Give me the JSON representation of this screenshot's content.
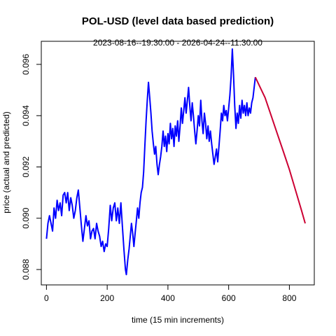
{
  "chart_data": {
    "type": "line",
    "title": "POL-USD (level data based prediction)",
    "subtitle": "2023-08-16--19:30:00  -  2026-04-24--11:30:00",
    "xlabel": "time (15 min increments)",
    "ylabel": "price (actual and predicted)",
    "xlim": [
      -17,
      882
    ],
    "ylim": [
      0.0874,
      0.0969
    ],
    "x_ticks": [
      0,
      200,
      400,
      600,
      800
    ],
    "x_tick_labels": [
      "0",
      "200",
      "400",
      "600",
      "800"
    ],
    "y_ticks": [
      0.088,
      0.09,
      0.092,
      0.094,
      0.096
    ],
    "y_tick_labels": [
      "0.088",
      "0.090",
      "0.092",
      "0.094",
      "0.096"
    ],
    "grid": false,
    "series": [
      {
        "role": "actual",
        "color": "#0000ff",
        "points": [
          [
            0,
            0.0892
          ],
          [
            5,
            0.0898
          ],
          [
            10,
            0.0901
          ],
          [
            15,
            0.0898
          ],
          [
            20,
            0.0895
          ],
          [
            25,
            0.0904
          ],
          [
            30,
            0.09
          ],
          [
            35,
            0.0907
          ],
          [
            40,
            0.0903
          ],
          [
            45,
            0.0906
          ],
          [
            50,
            0.0901
          ],
          [
            55,
            0.0909
          ],
          [
            60,
            0.091
          ],
          [
            65,
            0.0906
          ],
          [
            70,
            0.091
          ],
          [
            75,
            0.0903
          ],
          [
            80,
            0.0908
          ],
          [
            85,
            0.0905
          ],
          [
            90,
            0.09
          ],
          [
            95,
            0.0903
          ],
          [
            100,
            0.0908
          ],
          [
            105,
            0.0911
          ],
          [
            110,
            0.0904
          ],
          [
            115,
            0.0897
          ],
          [
            120,
            0.0891
          ],
          [
            125,
            0.0896
          ],
          [
            130,
            0.0901
          ],
          [
            135,
            0.0897
          ],
          [
            140,
            0.0899
          ],
          [
            145,
            0.0892
          ],
          [
            150,
            0.0895
          ],
          [
            155,
            0.0896
          ],
          [
            160,
            0.0892
          ],
          [
            165,
            0.0898
          ],
          [
            170,
            0.0895
          ],
          [
            175,
            0.0893
          ],
          [
            180,
            0.0889
          ],
          [
            185,
            0.0891
          ],
          [
            190,
            0.0887
          ],
          [
            195,
            0.089
          ],
          [
            200,
            0.0889
          ],
          [
            205,
            0.0896
          ],
          [
            210,
            0.0905
          ],
          [
            215,
            0.0899
          ],
          [
            220,
            0.0904
          ],
          [
            225,
            0.0906
          ],
          [
            230,
            0.0899
          ],
          [
            235,
            0.0904
          ],
          [
            240,
            0.0898
          ],
          [
            245,
            0.0906
          ],
          [
            250,
            0.0897
          ],
          [
            255,
            0.0888
          ],
          [
            260,
            0.088
          ],
          [
            263,
            0.0878
          ],
          [
            268,
            0.0884
          ],
          [
            272,
            0.0888
          ],
          [
            276,
            0.0893
          ],
          [
            280,
            0.0898
          ],
          [
            284,
            0.0894
          ],
          [
            288,
            0.0889
          ],
          [
            292,
            0.0894
          ],
          [
            296,
            0.0899
          ],
          [
            300,
            0.0904
          ],
          [
            304,
            0.09
          ],
          [
            308,
            0.0906
          ],
          [
            312,
            0.091
          ],
          [
            316,
            0.0912
          ],
          [
            320,
            0.0918
          ],
          [
            324,
            0.0928
          ],
          [
            328,
            0.0938
          ],
          [
            332,
            0.0946
          ],
          [
            336,
            0.0953
          ],
          [
            340,
            0.0947
          ],
          [
            344,
            0.0941
          ],
          [
            348,
            0.0934
          ],
          [
            352,
            0.0929
          ],
          [
            356,
            0.0925
          ],
          [
            360,
            0.0928
          ],
          [
            364,
            0.0921
          ],
          [
            368,
            0.0917
          ],
          [
            372,
            0.0921
          ],
          [
            376,
            0.0924
          ],
          [
            380,
            0.0928
          ],
          [
            384,
            0.0934
          ],
          [
            388,
            0.0928
          ],
          [
            392,
            0.0932
          ],
          [
            396,
            0.0926
          ],
          [
            400,
            0.0933
          ],
          [
            404,
            0.0929
          ],
          [
            408,
            0.0937
          ],
          [
            412,
            0.0931
          ],
          [
            416,
            0.0935
          ],
          [
            420,
            0.0928
          ],
          [
            424,
            0.0936
          ],
          [
            428,
            0.0932
          ],
          [
            432,
            0.0938
          ],
          [
            436,
            0.093
          ],
          [
            440,
            0.0936
          ],
          [
            444,
            0.0943
          ],
          [
            448,
            0.0937
          ],
          [
            452,
            0.0942
          ],
          [
            456,
            0.0947
          ],
          [
            460,
            0.0941
          ],
          [
            464,
            0.0946
          ],
          [
            468,
            0.0951
          ],
          [
            472,
            0.0944
          ],
          [
            476,
            0.0938
          ],
          [
            480,
            0.0945
          ],
          [
            484,
            0.094
          ],
          [
            488,
            0.0934
          ],
          [
            492,
            0.0929
          ],
          [
            496,
            0.0934
          ],
          [
            500,
            0.094
          ],
          [
            504,
            0.0936
          ],
          [
            508,
            0.0946
          ],
          [
            512,
            0.0938
          ],
          [
            516,
            0.0933
          ],
          [
            520,
            0.0941
          ],
          [
            524,
            0.0937
          ],
          [
            528,
            0.0931
          ],
          [
            532,
            0.0936
          ],
          [
            536,
            0.093
          ],
          [
            540,
            0.0934
          ],
          [
            544,
            0.0929
          ],
          [
            548,
            0.0925
          ],
          [
            552,
            0.0921
          ],
          [
            556,
            0.0924
          ],
          [
            560,
            0.0927
          ],
          [
            564,
            0.0922
          ],
          [
            568,
            0.0928
          ],
          [
            572,
            0.0934
          ],
          [
            576,
            0.0941
          ],
          [
            580,
            0.0938
          ],
          [
            584,
            0.0944
          ],
          [
            588,
            0.094
          ],
          [
            592,
            0.0942
          ],
          [
            596,
            0.0938
          ],
          [
            600,
            0.0943
          ],
          [
            604,
            0.0948
          ],
          [
            608,
            0.0955
          ],
          [
            612,
            0.0966
          ],
          [
            616,
            0.0956
          ],
          [
            620,
            0.0944
          ],
          [
            624,
            0.0935
          ],
          [
            628,
            0.0941
          ],
          [
            632,
            0.0937
          ],
          [
            636,
            0.0944
          ],
          [
            640,
            0.0939
          ],
          [
            644,
            0.0946
          ],
          [
            648,
            0.0941
          ],
          [
            652,
            0.0944
          ],
          [
            656,
            0.094
          ],
          [
            660,
            0.0945
          ],
          [
            664,
            0.094
          ],
          [
            668,
            0.0943
          ],
          [
            672,
            0.0941
          ],
          [
            676,
            0.0945
          ],
          [
            680,
            0.0947
          ],
          [
            684,
            0.0951
          ],
          [
            688,
            0.0955
          ]
        ]
      },
      {
        "role": "predicted",
        "color": "#cc0033",
        "points": [
          [
            688,
            0.0955
          ],
          [
            700,
            0.0952
          ],
          [
            720,
            0.0947
          ],
          [
            740,
            0.094
          ],
          [
            760,
            0.0933
          ],
          [
            780,
            0.0926
          ],
          [
            800,
            0.0919
          ],
          [
            820,
            0.0911
          ],
          [
            840,
            0.0903
          ],
          [
            852,
            0.0898
          ]
        ]
      }
    ]
  }
}
